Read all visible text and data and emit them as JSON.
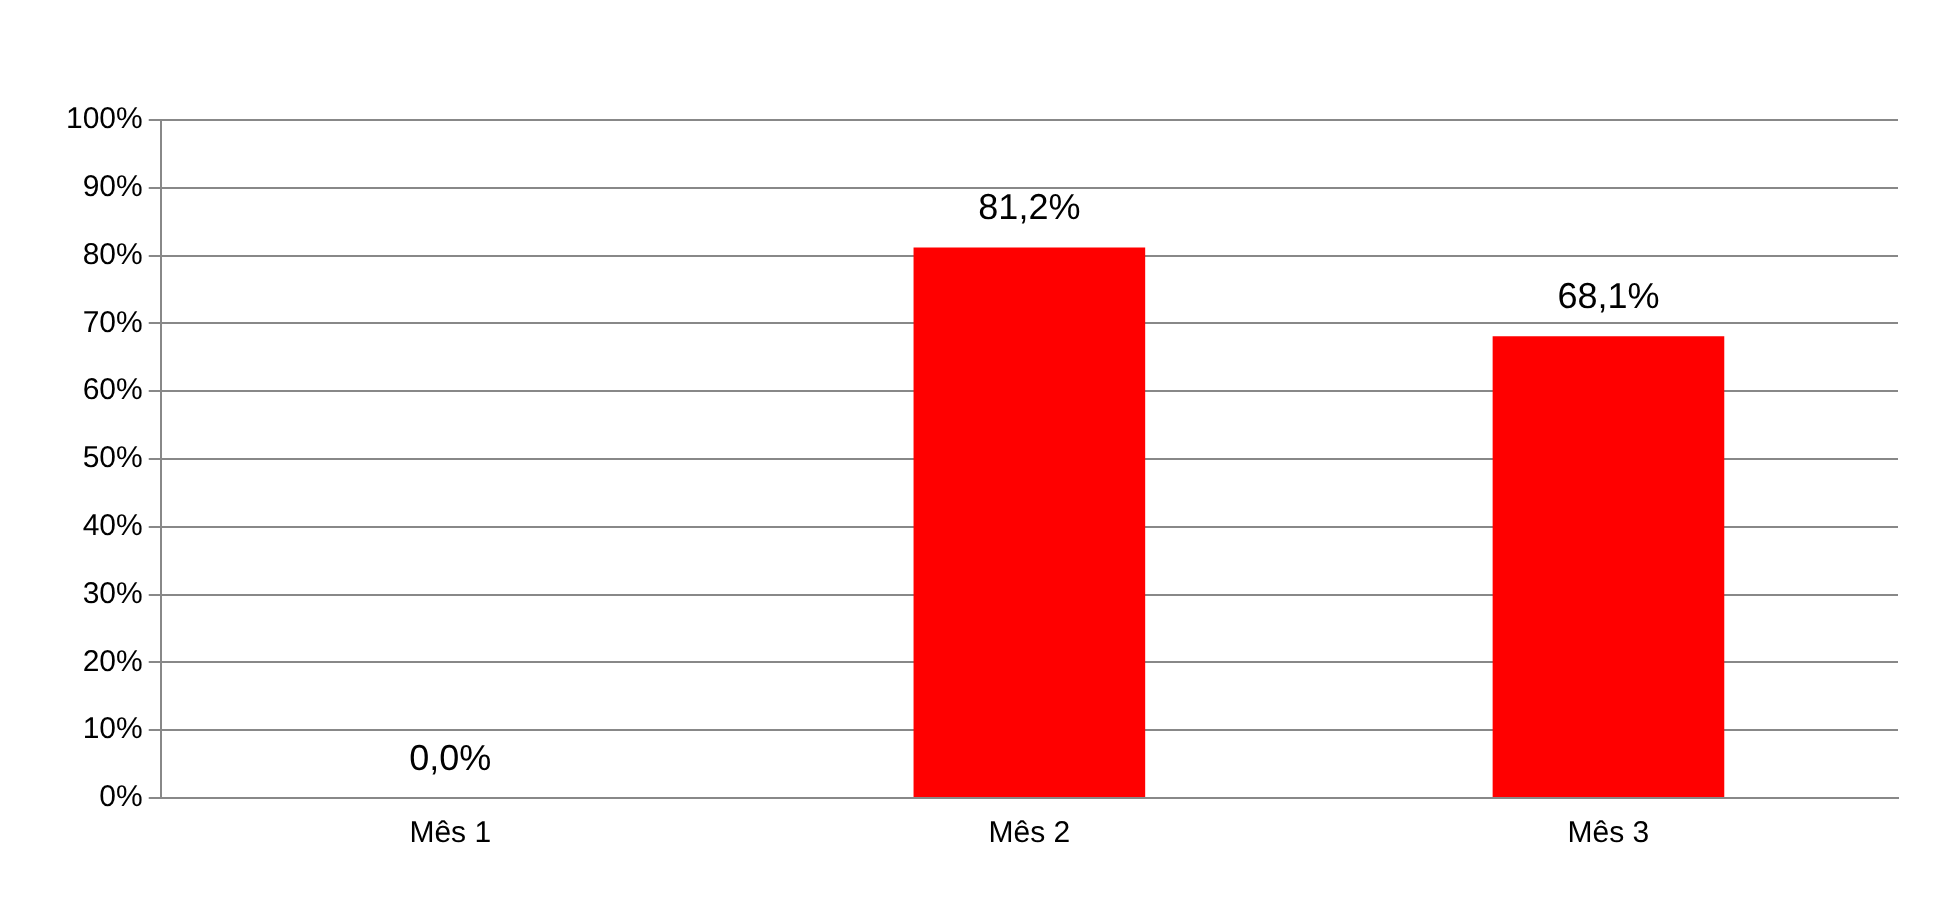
{
  "chart_data": {
    "type": "bar",
    "categories": [
      "Mês 1",
      "Mês 2",
      "Mês 3"
    ],
    "values": [
      0,
      81.2,
      68.1
    ],
    "value_labels": [
      "0,0%",
      "81,2%",
      "68,1%"
    ],
    "color": "#ff0000",
    "ylim": [
      0,
      100
    ],
    "yticks": [
      {
        "value": 0,
        "label": "0%"
      },
      {
        "value": 10,
        "label": "10%"
      },
      {
        "value": 20,
        "label": "20%"
      },
      {
        "value": 30,
        "label": "30%"
      },
      {
        "value": 40,
        "label": "40%"
      },
      {
        "value": 50,
        "label": "50%"
      },
      {
        "value": 60,
        "label": "60%"
      },
      {
        "value": 70,
        "label": "70%"
      },
      {
        "value": 80,
        "label": "80%"
      },
      {
        "value": 90,
        "label": "90%"
      },
      {
        "value": 100,
        "label": "100%"
      }
    ],
    "grid": "y",
    "legend": false
  }
}
